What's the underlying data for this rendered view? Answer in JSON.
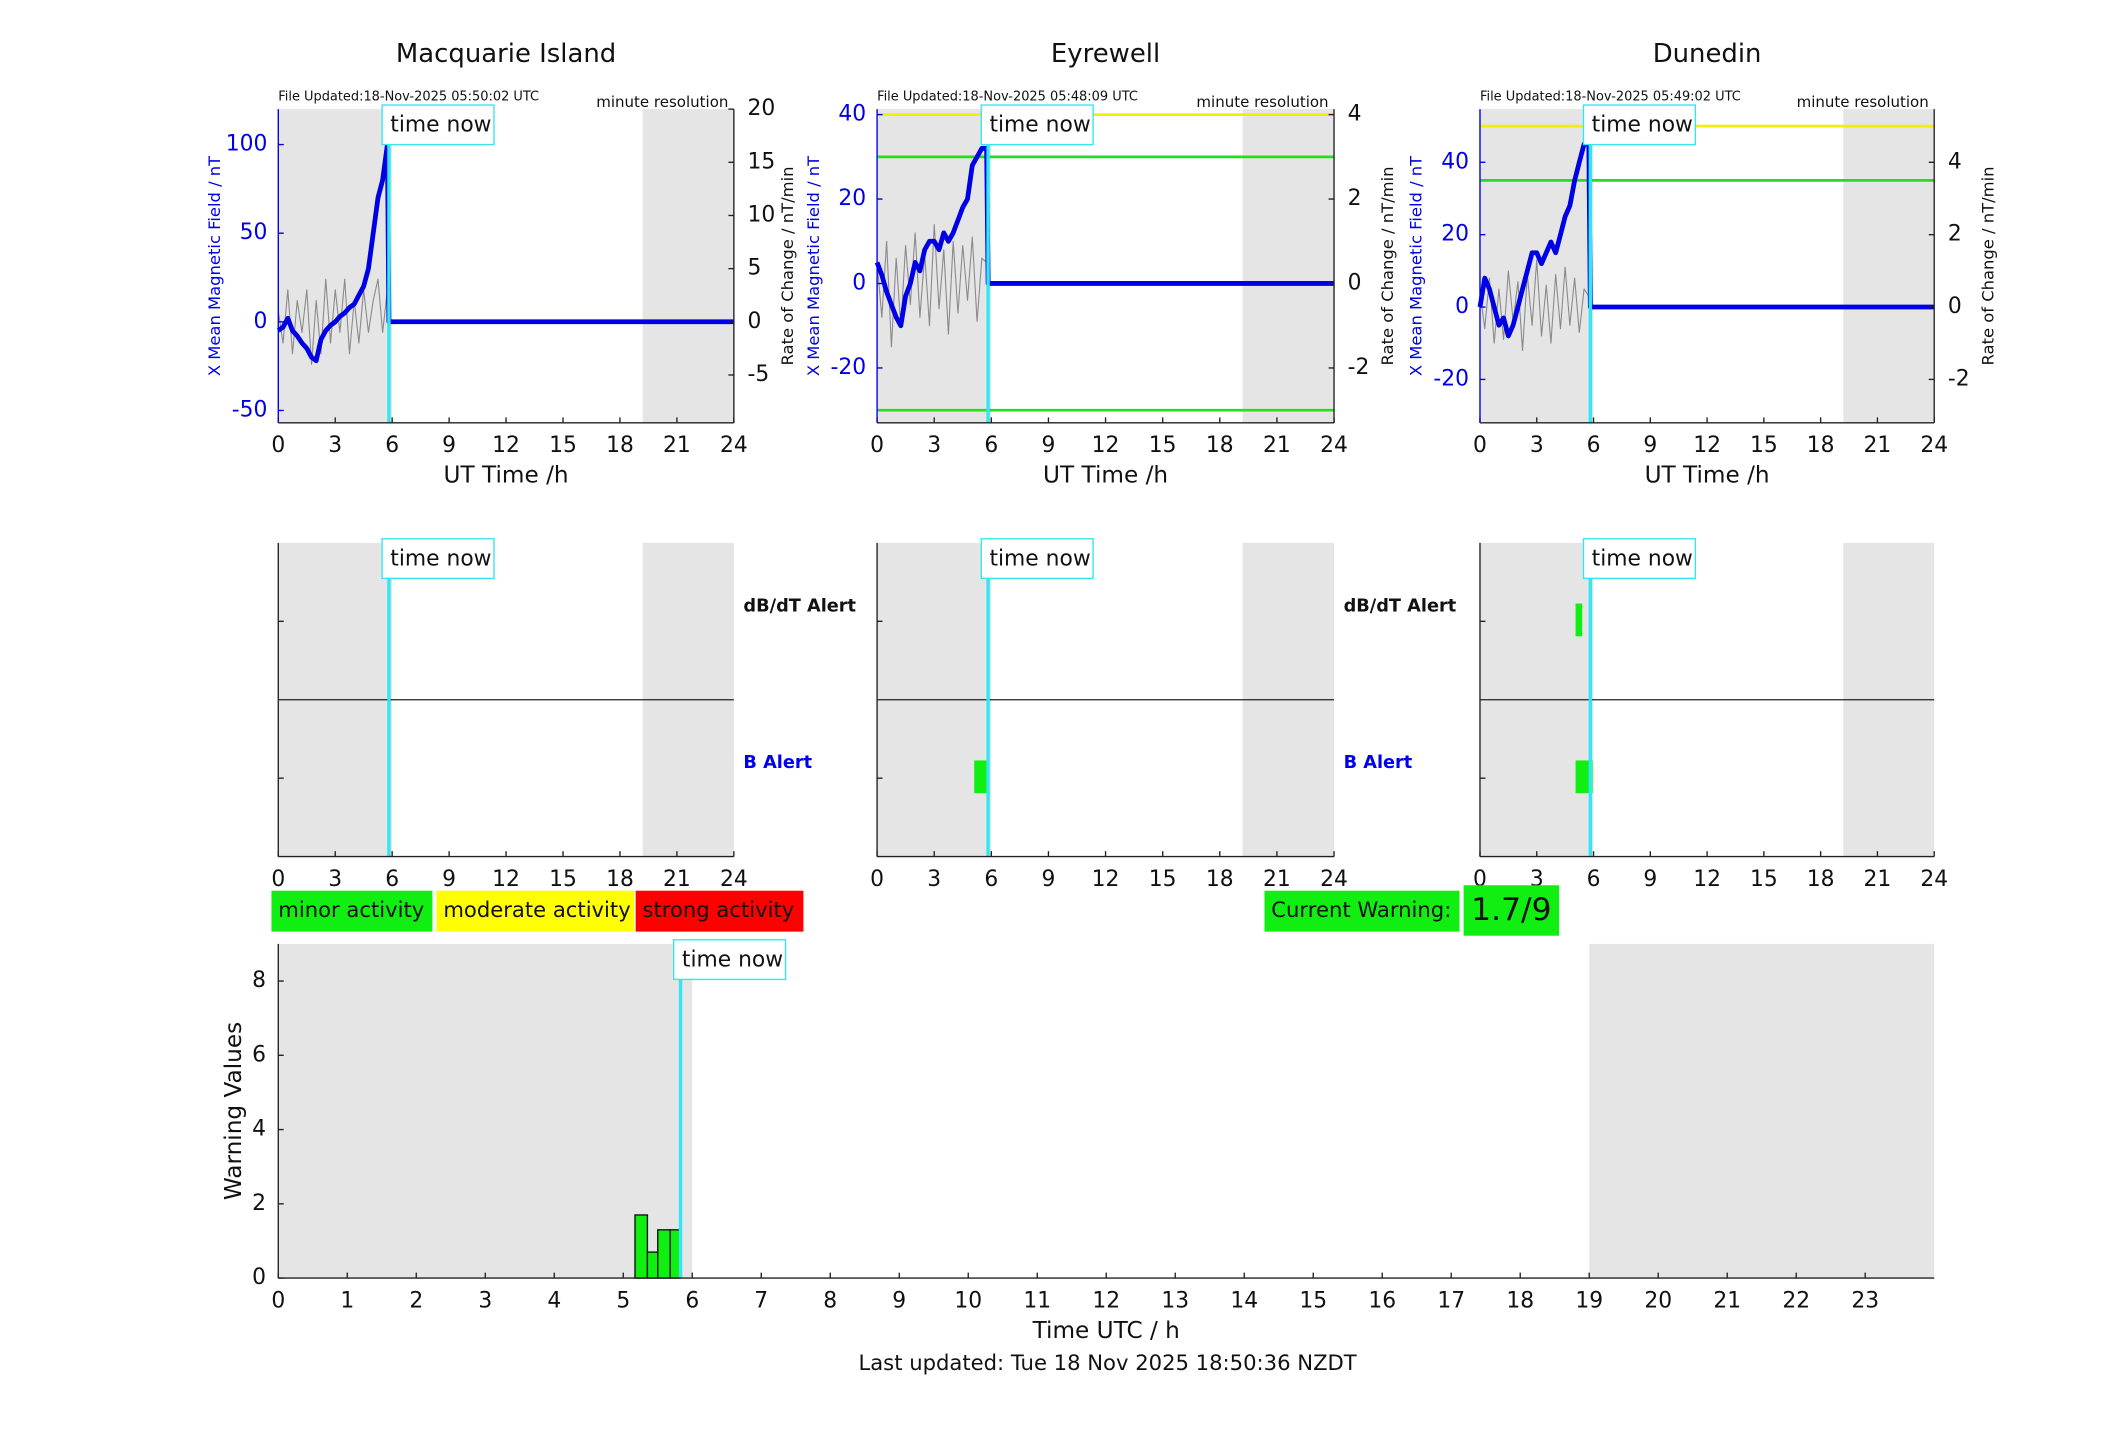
{
  "chart_data": [
    {
      "type": "line",
      "title": "Macquarie Island",
      "file_updated": "File Updated:18-Nov-2025 05:50:02 UTC",
      "resolution": "minute resolution",
      "xlabel": "UT Time /h",
      "ylabel": "X Mean Magnetic Field / nT",
      "y2label": "Rate of Change / nT/min",
      "xlim": [
        0,
        24
      ],
      "xticks": [
        0,
        3,
        6,
        9,
        12,
        15,
        18,
        21,
        24
      ],
      "ylim": [
        -57,
        120
      ],
      "yticks": [
        -50,
        0,
        50,
        100
      ],
      "y2lim": [
        -9.5,
        20
      ],
      "y2ticks": [
        -5,
        0,
        5,
        10,
        15,
        20
      ],
      "shaded": [
        [
          0,
          6
        ],
        [
          19.2,
          24
        ]
      ],
      "time_now": 5.83,
      "time_now_label": "time now",
      "thresholds": [],
      "x": [
        0,
        0.25,
        0.5,
        0.75,
        1,
        1.25,
        1.5,
        1.75,
        2,
        2.25,
        2.5,
        2.75,
        3,
        3.25,
        3.5,
        3.75,
        4,
        4.25,
        4.5,
        4.75,
        5,
        5.25,
        5.5,
        5.75,
        5.83,
        24
      ],
      "series": [
        {
          "color": "#8a8a8a",
          "axis": "y2",
          "values": [
            1,
            -2,
            3,
            -3,
            2,
            -1,
            3,
            -4,
            2,
            -3,
            4,
            -2,
            3,
            -1,
            4,
            -3,
            2,
            -2,
            3,
            -1,
            2,
            4,
            -1,
            3,
            0,
            null
          ]
        },
        {
          "color": "#0000e6",
          "values": [
            -5,
            -3,
            2,
            -5,
            -8,
            -12,
            -15,
            -20,
            -22,
            -10,
            -5,
            -2,
            0,
            3,
            5,
            8,
            10,
            15,
            20,
            30,
            50,
            70,
            80,
            100,
            0,
            0
          ]
        }
      ]
    },
    {
      "type": "line",
      "title": "Eyrewell",
      "file_updated": "File Updated:18-Nov-2025 05:48:09 UTC",
      "resolution": "minute resolution",
      "xlabel": "UT Time /h",
      "ylabel": "X Mean Magnetic Field / nT",
      "y2label": "Rate of Change / nT/min",
      "xlim": [
        0,
        24
      ],
      "xticks": [
        0,
        3,
        6,
        9,
        12,
        15,
        18,
        21,
        24
      ],
      "ylim": [
        -33,
        41.3
      ],
      "yticks": [
        -20,
        0,
        20,
        40
      ],
      "y2lim": [
        -3.3,
        4.13
      ],
      "y2ticks": [
        -2,
        0,
        2,
        4
      ],
      "shaded": [
        [
          0,
          6
        ],
        [
          19.2,
          24
        ]
      ],
      "time_now": 5.83,
      "time_now_label": "time now",
      "thresholds": [
        {
          "value": 40,
          "color": "#f0f000"
        },
        {
          "value": 30,
          "color": "#22dd22"
        },
        {
          "value": -30,
          "color": "#22dd22"
        }
      ],
      "x": [
        0,
        0.25,
        0.5,
        0.75,
        1,
        1.25,
        1.5,
        1.75,
        2,
        2.25,
        2.5,
        2.75,
        3,
        3.25,
        3.5,
        3.75,
        4,
        4.25,
        4.5,
        4.75,
        5,
        5.25,
        5.5,
        5.75,
        5.83,
        24
      ],
      "series": [
        {
          "color": "#8a8a8a",
          "axis": "y2",
          "values": [
            0.5,
            -0.8,
            1,
            -1.5,
            0.6,
            -1,
            0.9,
            -0.5,
            1.2,
            -0.8,
            0.7,
            -1,
            1.4,
            -0.6,
            0.8,
            -1.2,
            1,
            -0.7,
            0.9,
            -0.4,
            1.1,
            -0.9,
            0.6,
            0.5,
            0,
            null
          ]
        },
        {
          "color": "#0000e6",
          "values": [
            5,
            2,
            -2,
            -5,
            -8,
            -10,
            -3,
            0,
            5,
            3,
            8,
            10,
            10,
            8,
            12,
            10,
            12,
            15,
            18,
            20,
            28,
            30,
            32,
            32,
            0,
            0
          ]
        }
      ]
    },
    {
      "type": "line",
      "title": "Dunedin",
      "file_updated": "File Updated:18-Nov-2025 05:49:02 UTC",
      "resolution": "minute resolution",
      "xlabel": "UT Time /h",
      "ylabel": "X Mean Magnetic Field / nT",
      "y2label": "Rate of Change / nT/min",
      "xlim": [
        0,
        24
      ],
      "xticks": [
        0,
        3,
        6,
        9,
        12,
        15,
        18,
        21,
        24
      ],
      "ylim": [
        -32,
        54.7
      ],
      "yticks": [
        -20,
        0,
        20,
        40
      ],
      "y2lim": [
        -3.2,
        5.47
      ],
      "y2ticks": [
        -2,
        0,
        2,
        4
      ],
      "shaded": [
        [
          0,
          6
        ],
        [
          19.2,
          24
        ]
      ],
      "time_now": 5.83,
      "time_now_label": "time now",
      "thresholds": [
        {
          "value": 50,
          "color": "#f0f000"
        },
        {
          "value": 35,
          "color": "#22dd22"
        }
      ],
      "x": [
        0,
        0.25,
        0.5,
        0.75,
        1,
        1.25,
        1.5,
        1.75,
        2,
        2.25,
        2.5,
        2.75,
        3,
        3.25,
        3.5,
        3.75,
        4,
        4.25,
        4.5,
        4.75,
        5,
        5.25,
        5.5,
        5.75,
        5.83,
        24
      ],
      "series": [
        {
          "color": "#8a8a8a",
          "axis": "y2",
          "values": [
            0.4,
            -0.6,
            0.8,
            -1,
            0.5,
            -0.9,
            1,
            -0.4,
            0.7,
            -1.2,
            0.9,
            -0.5,
            1.3,
            -0.8,
            0.6,
            -1,
            0.9,
            -0.6,
            1.1,
            -0.5,
            0.8,
            -0.7,
            0.5,
            0.3,
            0,
            null
          ]
        },
        {
          "color": "#0000e6",
          "values": [
            0,
            8,
            5,
            0,
            -5,
            -3,
            -8,
            -5,
            0,
            5,
            10,
            15,
            15,
            12,
            15,
            18,
            15,
            20,
            25,
            28,
            35,
            40,
            45,
            45,
            0,
            0
          ]
        }
      ]
    },
    {
      "type": "alert",
      "xlim": [
        0,
        24
      ],
      "xticks": [
        0,
        3,
        6,
        9,
        12,
        15,
        18,
        21,
        24
      ],
      "shaded": [
        [
          0,
          6
        ],
        [
          19.2,
          24
        ]
      ],
      "time_now": 5.83,
      "time_now_label": "time now",
      "rows": [
        {
          "label": "dB/dT Alert",
          "color": "#111111"
        },
        {
          "label": "B Alert",
          "color": "#0000ee"
        }
      ],
      "alerts": []
    },
    {
      "type": "alert",
      "xlim": [
        0,
        24
      ],
      "xticks": [
        0,
        3,
        6,
        9,
        12,
        15,
        18,
        21,
        24
      ],
      "shaded": [
        [
          0,
          6
        ],
        [
          19.2,
          24
        ]
      ],
      "time_now": 5.83,
      "time_now_label": "time now",
      "rows": [
        {
          "label": "dB/dT Alert",
          "color": "#111111"
        },
        {
          "label": "B Alert",
          "color": "#0000ee"
        }
      ],
      "alerts": [
        {
          "row": 1,
          "start": 5.1,
          "end": 5.9,
          "color": "#11ee11"
        }
      ]
    },
    {
      "type": "alert",
      "xlim": [
        0,
        24
      ],
      "xticks": [
        0,
        3,
        6,
        9,
        12,
        15,
        18,
        21,
        24
      ],
      "shaded": [
        [
          0,
          6
        ],
        [
          19.2,
          24
        ]
      ],
      "time_now": 5.83,
      "time_now_label": "time now",
      "rows": [],
      "alerts": [
        {
          "row": 0,
          "start": 5.05,
          "end": 5.4,
          "color": "#11ee11"
        },
        {
          "row": 1,
          "start": 5.05,
          "end": 5.95,
          "color": "#11ee11"
        }
      ]
    },
    {
      "type": "histogram",
      "xlabel": "Time UTC / h",
      "ylabel": "Warning Values",
      "footer": "Last updated: Tue 18 Nov 2025 18:50:36 NZDT",
      "xlim": [
        0,
        24
      ],
      "xticks": [
        0,
        1,
        2,
        3,
        4,
        5,
        6,
        7,
        8,
        9,
        10,
        11,
        12,
        13,
        14,
        15,
        16,
        17,
        18,
        19,
        20,
        21,
        22,
        23
      ],
      "ylim": [
        0,
        9
      ],
      "yticks": [
        0,
        2,
        4,
        6,
        8
      ],
      "shaded": [
        [
          0,
          6
        ],
        [
          19,
          24
        ]
      ],
      "time_now": 5.83,
      "time_now_label": "time now",
      "bins": [
        5.17,
        5.35,
        5.5,
        5.68,
        5.83
      ],
      "values": [
        1.7,
        0.7,
        1.3,
        1.3
      ],
      "color": "#11ee11",
      "activity_levels": [
        {
          "label": "minor activity",
          "color": "#11ee11"
        },
        {
          "label": "moderate activity",
          "color": "#ffff00"
        },
        {
          "label": "strong activity",
          "color": "#ff0000"
        }
      ],
      "current_warning_label": "Current Warning:",
      "current_warning": "1.7/9",
      "current_warning_color": "#11ee11"
    }
  ]
}
